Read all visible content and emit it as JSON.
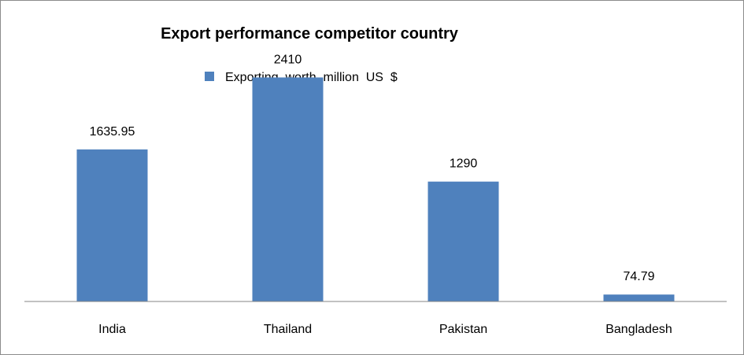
{
  "chart_data": {
    "type": "bar",
    "title": "Export performance competitor country",
    "categories": [
      "India",
      "Thailand",
      "Pakistan",
      "Bangladesh"
    ],
    "series": [
      {
        "name": "Exporting  worth  million  US  $",
        "values": [
          1635.95,
          2410,
          1290,
          74.79
        ],
        "labels": [
          "1635.95",
          "2410",
          "1290",
          "74.79"
        ]
      }
    ],
    "ylim": [
      0,
      2600
    ],
    "grid": false,
    "legend": "top-center",
    "colors": {
      "bar": "#4f81bd",
      "axis": "#868686"
    }
  }
}
